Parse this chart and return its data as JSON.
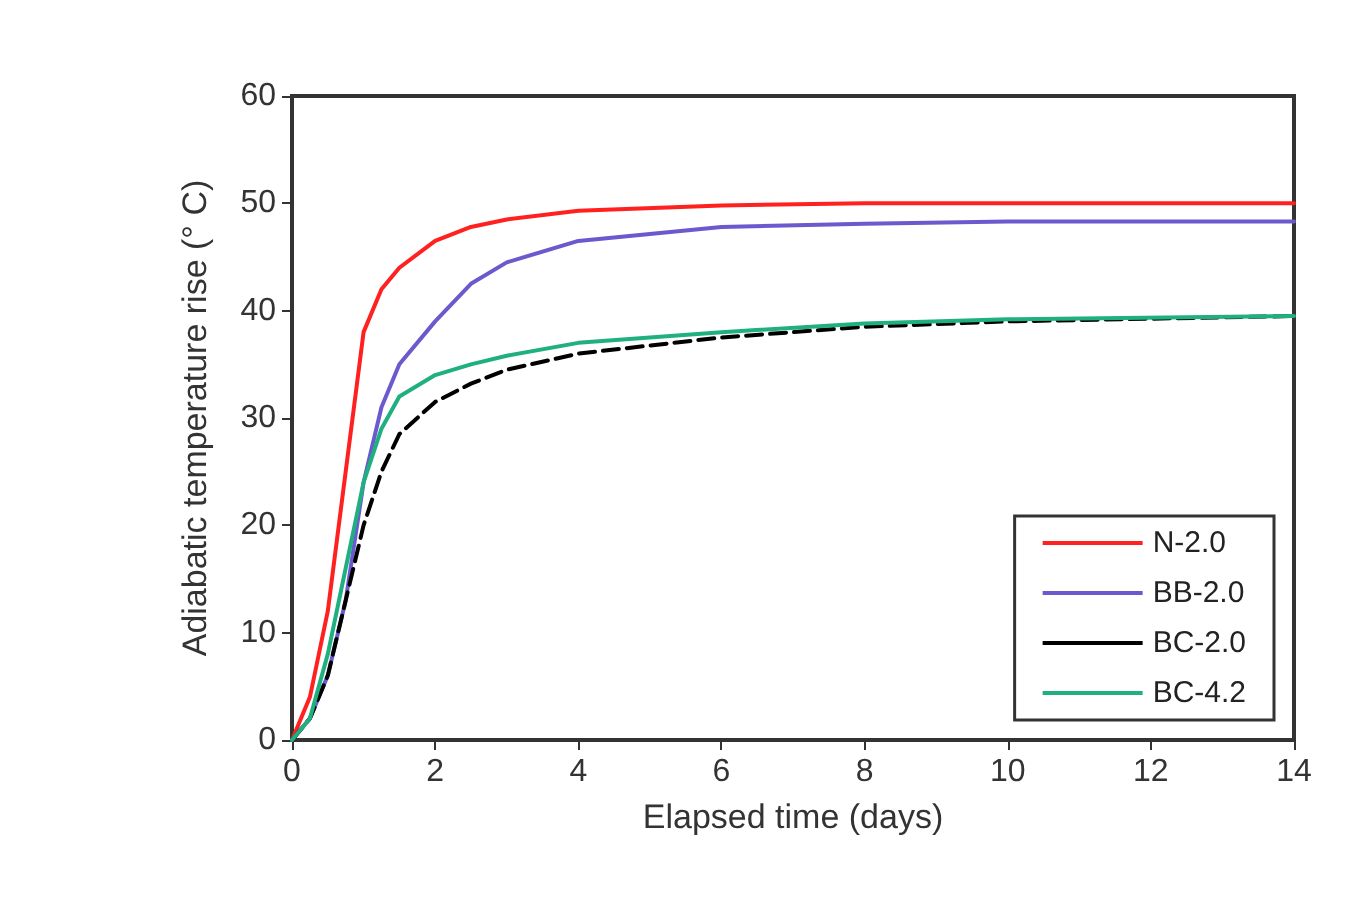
{
  "chart_data": {
    "type": "line",
    "xlabel": "Elapsed time (days)",
    "ylabel": "Adiabatic temperature rise (° C)",
    "x": [
      0,
      0.25,
      0.5,
      0.75,
      1,
      1.25,
      1.5,
      2,
      2.5,
      3,
      4,
      6,
      8,
      10,
      14
    ],
    "series": [
      {
        "name": "N-2.0",
        "color": "#ff2020",
        "values": [
          0,
          4,
          12,
          25,
          38,
          42,
          44,
          46.5,
          47.8,
          48.5,
          49.3,
          49.8,
          50,
          50,
          50
        ]
      },
      {
        "name": "BB-2.0",
        "color": "#6a5acd",
        "values": [
          0,
          2,
          6,
          13,
          24,
          31,
          35,
          39,
          42.5,
          44.5,
          46.5,
          47.8,
          48.1,
          48.3,
          48.3
        ]
      },
      {
        "name": "BC-2.0",
        "color": "#000000",
        "line_style": "dashed",
        "values": [
          0,
          2,
          6,
          13,
          20,
          25,
          28.5,
          31.5,
          33.2,
          34.5,
          36,
          37.5,
          38.5,
          39,
          39.5
        ]
      },
      {
        "name": "BC-4.2",
        "color": "#20b080",
        "values": [
          0,
          2,
          8,
          16,
          24,
          29,
          32,
          34,
          35,
          35.8,
          37,
          38,
          38.8,
          39.2,
          39.5
        ]
      }
    ],
    "xlim": [
      0,
      14
    ],
    "xticks": [
      0,
      2,
      4,
      6,
      8,
      10,
      12,
      14
    ],
    "ylim": [
      0,
      60
    ],
    "yticks": [
      0,
      10,
      20,
      30,
      40,
      50,
      60
    ],
    "grid": false,
    "legend": "bottom right",
    "marker": "none",
    "line_style": "solid"
  }
}
